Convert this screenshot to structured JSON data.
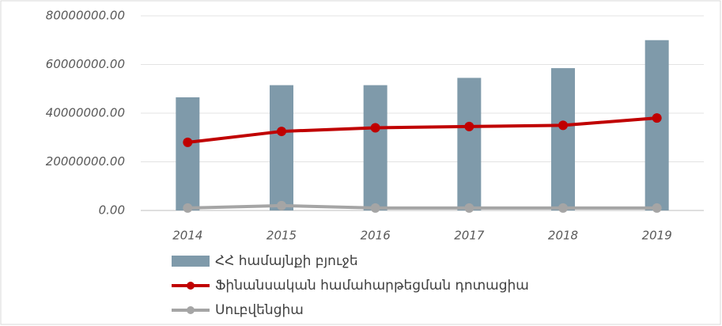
{
  "chart_data": {
    "type": "bar",
    "categories": [
      "2014",
      "2015",
      "2016",
      "2017",
      "2018",
      "2019"
    ],
    "series": [
      {
        "name": "ՀՀ համայնքի բյուջե",
        "type": "bar",
        "color": "#7f9aaa",
        "values": [
          46500000,
          51500000,
          51500000,
          54500000,
          58500000,
          70000000
        ]
      },
      {
        "name": "Ֆինանսական համահարթեցման դոտացիա",
        "type": "line",
        "color": "#c00000",
        "values": [
          28000000,
          32500000,
          34000000,
          34500000,
          35000000,
          38000000
        ]
      },
      {
        "name": "Սուբվենցիա",
        "type": "line",
        "color": "#a5a5a5",
        "values": [
          1000000,
          2000000,
          1000000,
          1000000,
          1000000,
          1000000
        ]
      }
    ],
    "ylim": [
      0,
      80000000
    ],
    "yticks": [
      {
        "value": 0,
        "label": "0.00"
      },
      {
        "value": 20000000,
        "label": "20000000.00"
      },
      {
        "value": 40000000,
        "label": "40000000.00"
      },
      {
        "value": 60000000,
        "label": "60000000.00"
      },
      {
        "value": 80000000,
        "label": "80000000.00"
      }
    ],
    "grid": true,
    "legend": "bottom"
  }
}
